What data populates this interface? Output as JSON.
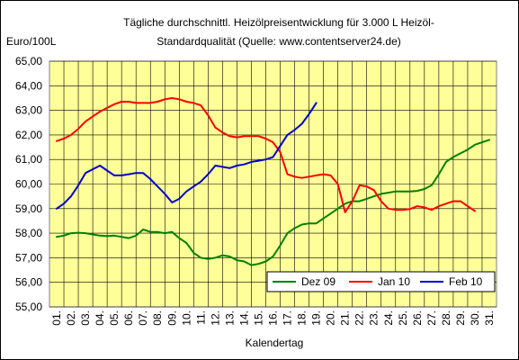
{
  "chart_data": {
    "type": "line",
    "title_line1": "Tägliche durchschnittl. Heizölpreisentwicklung für 3.000 L Heizöl-",
    "title_line2": "Standardqualität (Quelle: www.contentserver24.de)",
    "ylabel": "Euro/100L",
    "xlabel": "Kalendertag",
    "ylim": [
      55,
      65
    ],
    "y_ticks": [
      "55,00",
      "56,00",
      "57,00",
      "58,00",
      "59,00",
      "60,00",
      "61,00",
      "62,00",
      "63,00",
      "64,00",
      "65,00"
    ],
    "categories": [
      "01.",
      "02.",
      "03.",
      "04.",
      "05.",
      "06.",
      "07.",
      "08.",
      "09.",
      "10.",
      "11.",
      "12.",
      "13.",
      "14.",
      "15.",
      "16.",
      "17.",
      "18.",
      "19.",
      "20.",
      "21.",
      "22.",
      "23.",
      "24.",
      "25.",
      "26.",
      "27.",
      "28.",
      "29.",
      "30.",
      "31."
    ],
    "grid": true,
    "legend_position": "bottom-right",
    "plot_background": "#ffff99",
    "grid_color": "#000000",
    "series": [
      {
        "name": "Dez 09",
        "color": "#008000",
        "x": [
          1,
          1.5,
          2,
          2.5,
          3,
          3.5,
          4,
          4.5,
          5,
          5.5,
          6,
          6.5,
          7,
          7.5,
          8,
          8.5,
          9,
          9.5,
          10,
          10.5,
          11,
          11.5,
          12,
          12.5,
          13,
          13.5,
          14,
          14.5,
          15,
          15.5,
          16,
          16.5,
          17,
          17.5,
          18,
          18.5,
          19,
          19.5,
          20,
          20.5,
          21,
          21.5,
          22,
          22.5,
          23,
          23.5,
          24,
          24.5,
          25,
          25.5,
          26,
          26.5,
          27,
          27.5,
          28,
          28.5,
          29,
          29.5,
          30,
          30.5,
          31
        ],
        "values": [
          57.85,
          57.9,
          58.0,
          58.02,
          58.0,
          57.95,
          57.9,
          57.88,
          57.9,
          57.85,
          57.8,
          57.9,
          58.15,
          58.05,
          58.05,
          58.0,
          58.05,
          57.8,
          57.6,
          57.2,
          57.0,
          56.95,
          57.0,
          57.1,
          57.05,
          56.9,
          56.85,
          56.7,
          56.75,
          56.85,
          57.05,
          57.5,
          58.0,
          58.2,
          58.35,
          58.4,
          58.4,
          58.6,
          58.8,
          59.0,
          59.2,
          59.3,
          59.3,
          59.4,
          59.5,
          59.6,
          59.65,
          59.7,
          59.7,
          59.7,
          59.72,
          59.8,
          59.95,
          60.4,
          60.9,
          61.1,
          61.25,
          61.4,
          61.6,
          61.7,
          61.8
        ]
      },
      {
        "name": "Jan 10",
        "color": "#ff0000",
        "x": [
          1,
          1.5,
          2,
          2.5,
          3,
          3.5,
          4,
          4.5,
          5,
          5.5,
          6,
          6.5,
          7,
          7.5,
          8,
          8.5,
          9,
          9.5,
          10,
          10.5,
          11,
          11.5,
          12,
          12.5,
          13,
          13.5,
          14,
          14.5,
          15,
          15.5,
          16,
          16.5,
          17,
          17.5,
          18,
          18.5,
          19,
          19.5,
          20,
          20.5,
          21,
          21.5,
          22,
          22.5,
          23,
          23.5,
          24,
          24.5,
          25,
          25.5,
          26,
          26.5,
          27,
          27.5,
          28,
          28.5,
          29,
          29.5,
          30
        ],
        "values": [
          61.75,
          61.85,
          62.0,
          62.25,
          62.55,
          62.75,
          62.95,
          63.1,
          63.25,
          63.35,
          63.35,
          63.3,
          63.3,
          63.3,
          63.35,
          63.45,
          63.5,
          63.45,
          63.35,
          63.3,
          63.2,
          62.8,
          62.3,
          62.1,
          61.95,
          61.9,
          61.95,
          61.95,
          61.95,
          61.85,
          61.7,
          61.3,
          60.4,
          60.3,
          60.25,
          60.3,
          60.35,
          60.4,
          60.35,
          60.0,
          58.85,
          59.3,
          59.95,
          59.9,
          59.75,
          59.3,
          59.0,
          58.95,
          58.95,
          58.98,
          59.1,
          59.05,
          58.95,
          59.1,
          59.2,
          59.3,
          59.3,
          59.1,
          58.9
        ]
      },
      {
        "name": "Feb 10",
        "color": "#0000cc",
        "x": [
          1,
          1.5,
          2,
          2.5,
          3,
          3.5,
          4,
          4.5,
          5,
          5.5,
          6,
          6.5,
          7,
          7.5,
          8,
          8.5,
          9,
          9.5,
          10,
          10.5,
          11,
          11.5,
          12,
          12.5,
          13,
          13.5,
          14,
          14.5,
          15,
          15.5,
          16,
          16.5,
          17,
          17.5,
          18,
          18.5,
          19
        ],
        "values": [
          59.0,
          59.2,
          59.5,
          59.95,
          60.45,
          60.6,
          60.75,
          60.55,
          60.35,
          60.35,
          60.4,
          60.45,
          60.45,
          60.2,
          59.9,
          59.6,
          59.25,
          59.4,
          59.7,
          59.9,
          60.1,
          60.4,
          60.75,
          60.7,
          60.65,
          60.75,
          60.8,
          60.9,
          60.95,
          61.0,
          61.1,
          61.55,
          62.0,
          62.2,
          62.45,
          62.85,
          63.3
        ]
      }
    ]
  }
}
